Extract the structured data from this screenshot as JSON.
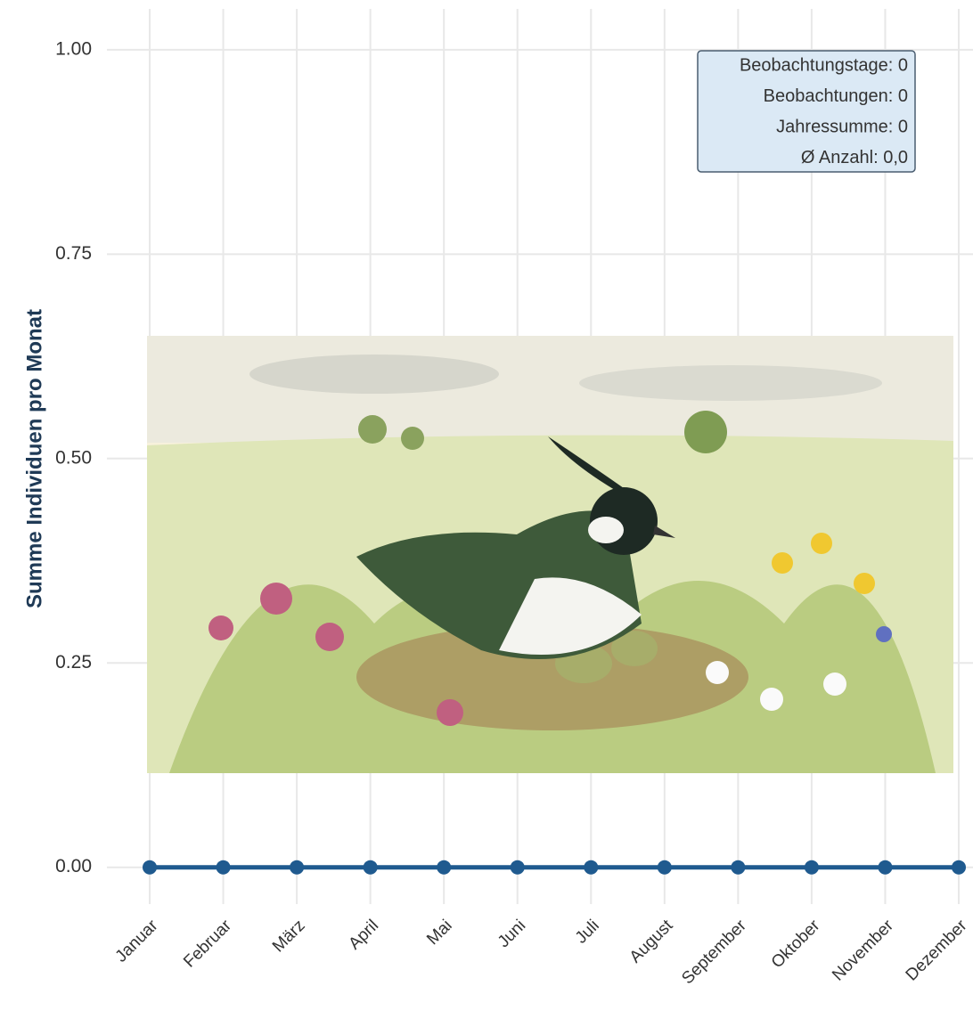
{
  "chart_data": {
    "type": "line",
    "y_label": "Summe Individuen pro Monat",
    "categories": [
      "Januar",
      "Februar",
      "März",
      "April",
      "Mai",
      "Juni",
      "Juli",
      "August",
      "September",
      "Oktober",
      "November",
      "Dezember"
    ],
    "series": [
      {
        "color": "#1f5a8f",
        "values": [
          0,
          0,
          0,
          0,
          0,
          0,
          0,
          0,
          0,
          0,
          0,
          0
        ]
      }
    ],
    "ylim": [
      -0.045,
      1.05
    ],
    "yticks": [
      {
        "value": 0,
        "label": "0.00"
      },
      {
        "value": 0.25,
        "label": "0.25"
      },
      {
        "value": 0.5,
        "label": "0.50"
      },
      {
        "value": 0.75,
        "label": "0.75"
      },
      {
        "value": 1,
        "label": "1.00"
      }
    ],
    "grid": true,
    "annotations": [
      "Beobachtungstage: 0",
      "Beobachtungen: 0",
      "Jahressumme: 0",
      "Ø Anzahl: 0,0"
    ]
  }
}
